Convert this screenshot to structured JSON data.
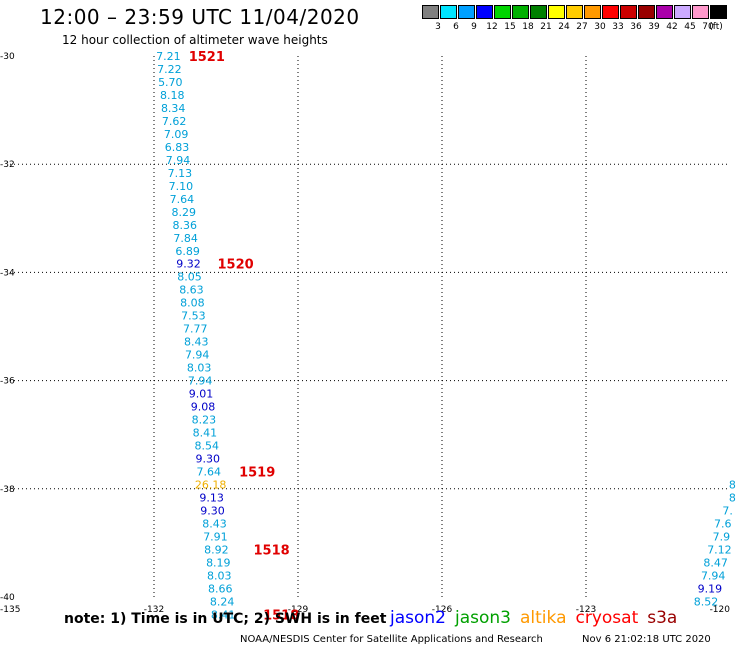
{
  "header": {
    "title": "12:00 – 23:59 UTC 11/04/2020",
    "subtitle": "12 hour collection of altimeter wave heights"
  },
  "legend": {
    "unit": "(ft)",
    "items": [
      {
        "label": "3",
        "color": "#808080"
      },
      {
        "label": "6",
        "color": "#00e5ff"
      },
      {
        "label": "9",
        "color": "#00a0ff"
      },
      {
        "label": "12",
        "color": "#0000ff"
      },
      {
        "label": "15",
        "color": "#00d400"
      },
      {
        "label": "18",
        "color": "#00b000"
      },
      {
        "label": "21",
        "color": "#008000"
      },
      {
        "label": "24",
        "color": "#ffff00"
      },
      {
        "label": "27",
        "color": "#ffcc00"
      },
      {
        "label": "30",
        "color": "#ff9900"
      },
      {
        "label": "33",
        "color": "#ff0000"
      },
      {
        "label": "36",
        "color": "#cc0000"
      },
      {
        "label": "39",
        "color": "#990000"
      },
      {
        "label": "42",
        "color": "#aa00aa"
      },
      {
        "label": "45",
        "color": "#ccaaff"
      },
      {
        "label": "70",
        "color": "#ff99cc"
      },
      {
        "label": "",
        "color": "#000000"
      }
    ]
  },
  "map": {
    "lon_labels": [
      "-135",
      "-132",
      "-129",
      "-126",
      "-123",
      "-120"
    ],
    "lat_labels": [
      "-30",
      "-32",
      "-34",
      "-36",
      "-38",
      "-40"
    ],
    "lon_range": [
      -135,
      -120
    ],
    "lat_range": [
      -40,
      -30
    ]
  },
  "colors": {
    "cyan": "#00a0d8",
    "blue": "#0000c8",
    "orange": "#f0b000",
    "red": "#e00000",
    "grid": "#000000"
  },
  "track_main": {
    "readings": [
      {
        "value": "7.21",
        "lon": -131.7,
        "lat": -30.0,
        "color": "cyan"
      },
      {
        "value": "7.22",
        "lon": -131.68,
        "lat": -30.24,
        "color": "cyan"
      },
      {
        "value": "5.70",
        "lon": -131.66,
        "lat": -30.48,
        "color": "cyan"
      },
      {
        "value": "8.18",
        "lon": -131.62,
        "lat": -30.72,
        "color": "cyan"
      },
      {
        "value": "8.34",
        "lon": -131.6,
        "lat": -30.96,
        "color": "cyan"
      },
      {
        "value": "7.62",
        "lon": -131.58,
        "lat": -31.2,
        "color": "cyan"
      },
      {
        "value": "7.09",
        "lon": -131.54,
        "lat": -31.44,
        "color": "cyan"
      },
      {
        "value": "6.83",
        "lon": -131.52,
        "lat": -31.68,
        "color": "cyan"
      },
      {
        "value": "7.94",
        "lon": -131.5,
        "lat": -31.92,
        "color": "cyan"
      },
      {
        "value": "7.13",
        "lon": -131.46,
        "lat": -32.16,
        "color": "cyan"
      },
      {
        "value": "7.10",
        "lon": -131.44,
        "lat": -32.4,
        "color": "cyan"
      },
      {
        "value": "7.64",
        "lon": -131.42,
        "lat": -32.64,
        "color": "cyan"
      },
      {
        "value": "8.29",
        "lon": -131.38,
        "lat": -32.88,
        "color": "cyan"
      },
      {
        "value": "8.36",
        "lon": -131.36,
        "lat": -33.12,
        "color": "cyan"
      },
      {
        "value": "7.84",
        "lon": -131.34,
        "lat": -33.36,
        "color": "cyan"
      },
      {
        "value": "6.89",
        "lon": -131.3,
        "lat": -33.6,
        "color": "cyan"
      },
      {
        "value": "9.32",
        "lon": -131.28,
        "lat": -33.84,
        "color": "blue"
      },
      {
        "value": "8.05",
        "lon": -131.26,
        "lat": -34.08,
        "color": "cyan"
      },
      {
        "value": "8.63",
        "lon": -131.22,
        "lat": -34.32,
        "color": "cyan"
      },
      {
        "value": "8.08",
        "lon": -131.2,
        "lat": -34.56,
        "color": "cyan"
      },
      {
        "value": "7.53",
        "lon": -131.18,
        "lat": -34.8,
        "color": "cyan"
      },
      {
        "value": "7.77",
        "lon": -131.14,
        "lat": -35.04,
        "color": "cyan"
      },
      {
        "value": "8.43",
        "lon": -131.12,
        "lat": -35.28,
        "color": "cyan"
      },
      {
        "value": "7.94",
        "lon": -131.1,
        "lat": -35.52,
        "color": "cyan"
      },
      {
        "value": "8.03",
        "lon": -131.06,
        "lat": -35.76,
        "color": "cyan"
      },
      {
        "value": "7.94",
        "lon": -131.04,
        "lat": -36.0,
        "color": "cyan"
      },
      {
        "value": "9.01",
        "lon": -131.02,
        "lat": -36.24,
        "color": "blue"
      },
      {
        "value": "9.08",
        "lon": -130.98,
        "lat": -36.48,
        "color": "blue"
      },
      {
        "value": "8.23",
        "lon": -130.96,
        "lat": -36.72,
        "color": "cyan"
      },
      {
        "value": "8.41",
        "lon": -130.94,
        "lat": -36.96,
        "color": "cyan"
      },
      {
        "value": "8.54",
        "lon": -130.9,
        "lat": -37.2,
        "color": "cyan"
      },
      {
        "value": "9.30",
        "lon": -130.88,
        "lat": -37.44,
        "color": "blue"
      },
      {
        "value": "7.64",
        "lon": -130.86,
        "lat": -37.68,
        "color": "cyan"
      },
      {
        "value": "26.18",
        "lon": -130.82,
        "lat": -37.92,
        "color": "orange"
      },
      {
        "value": "9.13",
        "lon": -130.8,
        "lat": -38.16,
        "color": "blue"
      },
      {
        "value": "9.30",
        "lon": -130.78,
        "lat": -38.4,
        "color": "blue"
      },
      {
        "value": "8.43",
        "lon": -130.74,
        "lat": -38.64,
        "color": "cyan"
      },
      {
        "value": "7.91",
        "lon": -130.72,
        "lat": -38.88,
        "color": "cyan"
      },
      {
        "value": "8.92",
        "lon": -130.7,
        "lat": -39.12,
        "color": "cyan"
      },
      {
        "value": "8.19",
        "lon": -130.66,
        "lat": -39.36,
        "color": "cyan"
      },
      {
        "value": "8.03",
        "lon": -130.64,
        "lat": -39.6,
        "color": "cyan"
      },
      {
        "value": "8.66",
        "lon": -130.62,
        "lat": -39.84,
        "color": "cyan"
      },
      {
        "value": "8.24",
        "lon": -130.58,
        "lat": -40.08,
        "color": "cyan"
      },
      {
        "value": "8.41",
        "lon": -130.56,
        "lat": -40.32,
        "color": "cyan"
      }
    ],
    "time_labels": [
      {
        "value": "1521",
        "lon": -130.9,
        "lat": -30.0
      },
      {
        "value": "1520",
        "lon": -130.3,
        "lat": -33.84
      },
      {
        "value": "1519",
        "lon": -129.85,
        "lat": -37.68
      },
      {
        "value": "1518",
        "lon": -129.55,
        "lat": -39.12
      },
      {
        "value": "1518",
        "lon": -129.35,
        "lat": -40.32
      }
    ]
  },
  "track_east": {
    "readings": [
      {
        "value": "8",
        "lon": -119.95,
        "lat": -37.92,
        "color": "cyan"
      },
      {
        "value": "8",
        "lon": -119.95,
        "lat": -38.16,
        "color": "cyan"
      },
      {
        "value": "7.",
        "lon": -120.05,
        "lat": -38.4,
        "color": "cyan"
      },
      {
        "value": "7.6",
        "lon": -120.15,
        "lat": -38.64,
        "color": "cyan"
      },
      {
        "value": "7.9",
        "lon": -120.18,
        "lat": -38.88,
        "color": "cyan"
      },
      {
        "value": "7.12",
        "lon": -120.22,
        "lat": -39.12,
        "color": "cyan"
      },
      {
        "value": "8.47",
        "lon": -120.3,
        "lat": -39.36,
        "color": "cyan"
      },
      {
        "value": "7.94",
        "lon": -120.35,
        "lat": -39.6,
        "color": "cyan"
      },
      {
        "value": "9.19",
        "lon": -120.42,
        "lat": -39.84,
        "color": "blue"
      },
      {
        "value": "8.52",
        "lon": -120.5,
        "lat": -40.08,
        "color": "cyan"
      }
    ]
  },
  "footer": {
    "note": "note:  1) Time is in UTC; 2) SWH is in feet",
    "satellites": [
      {
        "name": "jason2",
        "color": "#0000ff"
      },
      {
        "name": "jason3",
        "color": "#00a000"
      },
      {
        "name": "altika",
        "color": "#ff9900"
      },
      {
        "name": "cryosat",
        "color": "#ff0000"
      },
      {
        "name": "s3a",
        "color": "#990000"
      }
    ],
    "credit": "NOAA/NESDIS Center for Satellite Applications and Research",
    "timestamp": "Nov  6 21:02:18 UTC 2020"
  }
}
